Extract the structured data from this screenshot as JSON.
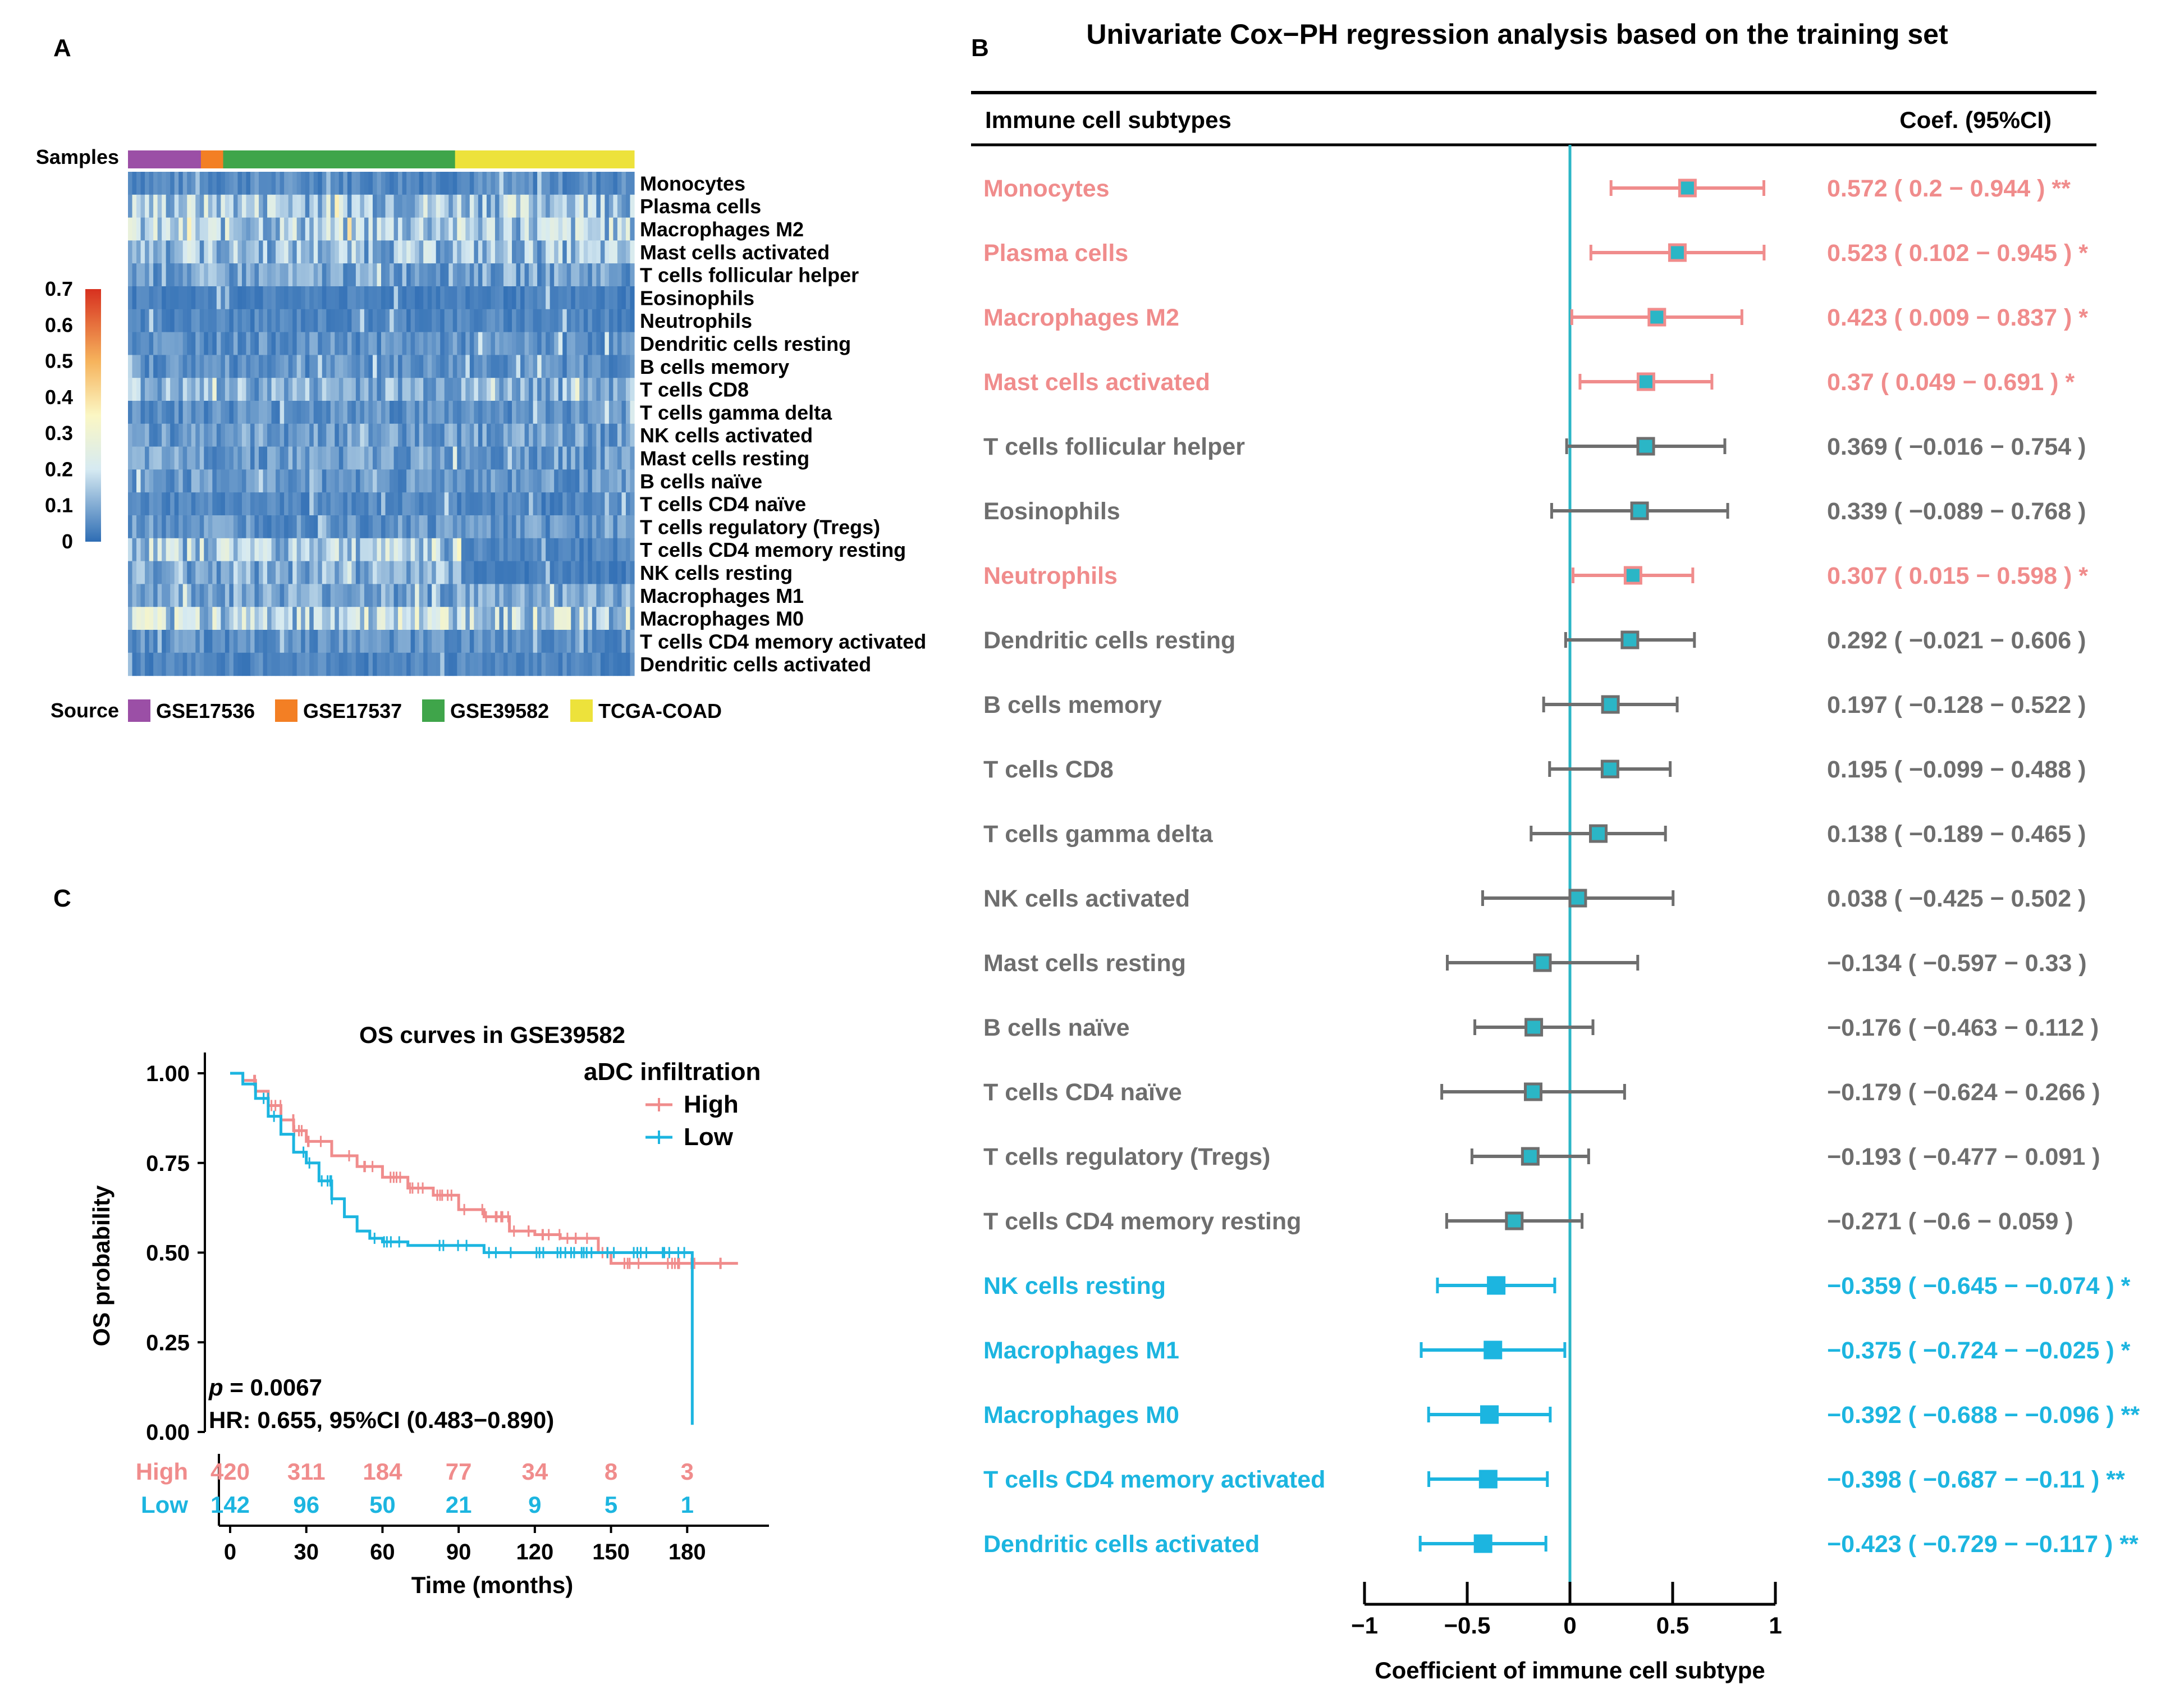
{
  "colors": {
    "pink": "#F08C8C",
    "blue": "#1CB5E0",
    "gray": "#6E6E6E",
    "teal_line": "#2BB6C6",
    "marker_fill": "#2BB6C6",
    "src_GSE17536": "#9B4FA6",
    "src_GSE17537": "#F37F24",
    "src_GSE39582": "#3FA54A",
    "src_TCGA": "#EDE23B"
  },
  "panels": {
    "A": "A",
    "B": "B",
    "C": "C"
  },
  "chart_data": [
    {
      "type": "heatmap",
      "panel": "A",
      "samples_label": "Samples",
      "source_label": "Source",
      "sources": [
        {
          "name": "GSE17536",
          "fraction": 0.144,
          "color_key": "src_GSE17536"
        },
        {
          "name": "GSE17537",
          "fraction": 0.044,
          "color_key": "src_GSE17537"
        },
        {
          "name": "GSE39582",
          "fraction": 0.458,
          "color_key": "src_GSE39582"
        },
        {
          "name": "TCGA-COAD",
          "fraction": 0.354,
          "color_key": "src_TCGA"
        }
      ],
      "rows": [
        "Monocytes",
        "Plasma cells",
        "Macrophages M2",
        "Mast cells activated",
        "T cells follicular helper",
        "Eosinophils",
        "Neutrophils",
        "Dendritic cells resting",
        "B cells memory",
        "T cells CD8",
        "T cells gamma delta",
        "NK cells activated",
        "Mast cells resting",
        "B cells naïve",
        "T cells CD4 naïve",
        "T cells regulatory (Tregs)",
        "T cells CD4 memory resting",
        "NK cells resting",
        "Macrophages M1",
        "Macrophages M0",
        "T cells CD4 memory activated",
        "Dendritic cells activated"
      ],
      "colorbar": {
        "ticks": [
          "0.7",
          "0.6",
          "0.5",
          "0.4",
          "0.3",
          "0.2",
          "0.1",
          "0"
        ],
        "range": [
          0,
          0.7
        ]
      }
    },
    {
      "type": "forest",
      "panel": "B",
      "title": "Univariate Cox−PH regression analysis based on the training set",
      "col_left": "Immune cell subtypes",
      "col_right": "Coef. (95%CI)",
      "xlabel": "Coefficient of immune cell subtype",
      "xlim": [
        -1,
        1
      ],
      "xticks": [
        "−1",
        "−0.5",
        "0",
        "0.5",
        "1"
      ],
      "xtick_values": [
        -1,
        -0.5,
        0,
        0.5,
        1
      ],
      "rows": [
        {
          "name": "Monocytes",
          "coef": 0.572,
          "lo": 0.2,
          "hi": 0.944,
          "group": "pink",
          "label": "0.572 ( 0.2 − 0.944 ) **"
        },
        {
          "name": "Plasma cells",
          "coef": 0.523,
          "lo": 0.102,
          "hi": 0.945,
          "group": "pink",
          "label": "0.523 ( 0.102 − 0.945 ) *"
        },
        {
          "name": "Macrophages M2",
          "coef": 0.423,
          "lo": 0.009,
          "hi": 0.837,
          "group": "pink",
          "label": "0.423 ( 0.009 − 0.837 ) *"
        },
        {
          "name": "Mast cells activated",
          "coef": 0.37,
          "lo": 0.049,
          "hi": 0.691,
          "group": "pink",
          "label": "0.37 ( 0.049 − 0.691 ) *"
        },
        {
          "name": "T cells follicular helper",
          "coef": 0.369,
          "lo": -0.016,
          "hi": 0.754,
          "group": "gray",
          "label": "0.369 ( −0.016 − 0.754 )"
        },
        {
          "name": "Eosinophils",
          "coef": 0.339,
          "lo": -0.089,
          "hi": 0.768,
          "group": "gray",
          "label": "0.339 ( −0.089 − 0.768 )"
        },
        {
          "name": "Neutrophils",
          "coef": 0.307,
          "lo": 0.015,
          "hi": 0.598,
          "group": "pink",
          "label": "0.307 ( 0.015 − 0.598 ) *"
        },
        {
          "name": "Dendritic cells resting",
          "coef": 0.292,
          "lo": -0.021,
          "hi": 0.606,
          "group": "gray",
          "label": "0.292 ( −0.021 − 0.606 )"
        },
        {
          "name": "B cells memory",
          "coef": 0.197,
          "lo": -0.128,
          "hi": 0.522,
          "group": "gray",
          "label": "0.197 ( −0.128 − 0.522 )"
        },
        {
          "name": "T cells CD8",
          "coef": 0.195,
          "lo": -0.099,
          "hi": 0.488,
          "group": "gray",
          "label": "0.195 ( −0.099 − 0.488 )"
        },
        {
          "name": "T cells gamma delta",
          "coef": 0.138,
          "lo": -0.189,
          "hi": 0.465,
          "group": "gray",
          "label": "0.138 ( −0.189 − 0.465 )"
        },
        {
          "name": "NK cells activated",
          "coef": 0.038,
          "lo": -0.425,
          "hi": 0.502,
          "group": "gray",
          "label": "0.038 ( −0.425 − 0.502 )"
        },
        {
          "name": "Mast cells resting",
          "coef": -0.134,
          "lo": -0.597,
          "hi": 0.33,
          "group": "gray",
          "label": "−0.134 ( −0.597 − 0.33 )"
        },
        {
          "name": "B cells naïve",
          "coef": -0.176,
          "lo": -0.463,
          "hi": 0.112,
          "group": "gray",
          "label": "−0.176 ( −0.463 − 0.112 )"
        },
        {
          "name": "T cells CD4 naïve",
          "coef": -0.179,
          "lo": -0.624,
          "hi": 0.266,
          "group": "gray",
          "label": "−0.179 ( −0.624 − 0.266 )"
        },
        {
          "name": "T cells regulatory (Tregs)",
          "coef": -0.193,
          "lo": -0.477,
          "hi": 0.091,
          "group": "gray",
          "label": "−0.193 ( −0.477 − 0.091 )"
        },
        {
          "name": "T cells CD4 memory resting",
          "coef": -0.271,
          "lo": -0.6,
          "hi": 0.059,
          "group": "gray",
          "label": "−0.271 ( −0.6 − 0.059 )"
        },
        {
          "name": "NK cells resting",
          "coef": -0.359,
          "lo": -0.645,
          "hi": -0.074,
          "group": "blue",
          "label": "−0.359 ( −0.645 − −0.074 ) *"
        },
        {
          "name": "Macrophages M1",
          "coef": -0.375,
          "lo": -0.724,
          "hi": -0.025,
          "group": "blue",
          "label": "−0.375 ( −0.724 − −0.025 ) *"
        },
        {
          "name": "Macrophages M0",
          "coef": -0.392,
          "lo": -0.688,
          "hi": -0.096,
          "group": "blue",
          "label": "−0.392 ( −0.688 − −0.096 ) **"
        },
        {
          "name": "T cells CD4 memory activated",
          "coef": -0.398,
          "lo": -0.687,
          "hi": -0.11,
          "group": "blue",
          "label": "−0.398 ( −0.687 − −0.11 ) **"
        },
        {
          "name": "Dendritic cells activated",
          "coef": -0.423,
          "lo": -0.729,
          "hi": -0.117,
          "group": "blue",
          "label": "−0.423 ( −0.729 − −0.117 ) **"
        }
      ]
    },
    {
      "type": "line",
      "panel": "C",
      "title": "OS curves in GSE39582",
      "xlabel": "Time (months)",
      "ylabel": "OS probability",
      "xlim": [
        0,
        210
      ],
      "ylim": [
        0,
        1
      ],
      "xticks": [
        0,
        30,
        60,
        90,
        120,
        150,
        180
      ],
      "yticks": [
        "0.00",
        "0.25",
        "0.50",
        "0.75",
        "1.00"
      ],
      "ytick_values": [
        0,
        0.25,
        0.5,
        0.75,
        1
      ],
      "legend_title": "aDC infiltration",
      "p_label": "p",
      "p_value": " = 0.0067",
      "hr_text": "HR: 0.655, 95%CI (0.483−0.890)",
      "series": [
        {
          "name": "High",
          "color_key": "pink",
          "x": [
            0,
            5,
            10,
            15,
            20,
            25,
            30,
            40,
            50,
            60,
            70,
            80,
            90,
            100,
            110,
            120,
            130,
            145,
            150,
            175,
            180,
            200
          ],
          "y": [
            1.0,
            0.98,
            0.95,
            0.91,
            0.87,
            0.84,
            0.81,
            0.77,
            0.74,
            0.71,
            0.68,
            0.66,
            0.62,
            0.6,
            0.56,
            0.55,
            0.54,
            0.5,
            0.47,
            0.47,
            0.47,
            0.47
          ],
          "at_risk": [
            "420",
            "311",
            "184",
            "77",
            "34",
            "8",
            "3"
          ]
        },
        {
          "name": "Low",
          "color_key": "blue",
          "x": [
            0,
            5,
            10,
            15,
            20,
            25,
            30,
            35,
            40,
            45,
            50,
            55,
            60,
            70,
            80,
            100,
            120,
            150,
            170,
            182,
            182
          ],
          "y": [
            1.0,
            0.97,
            0.93,
            0.88,
            0.83,
            0.78,
            0.75,
            0.7,
            0.65,
            0.6,
            0.56,
            0.54,
            0.53,
            0.52,
            0.52,
            0.5,
            0.5,
            0.5,
            0.5,
            0.5,
            0.02
          ],
          "at_risk": [
            "142",
            "96",
            "50",
            "21",
            "9",
            "5",
            "1"
          ]
        }
      ]
    }
  ]
}
